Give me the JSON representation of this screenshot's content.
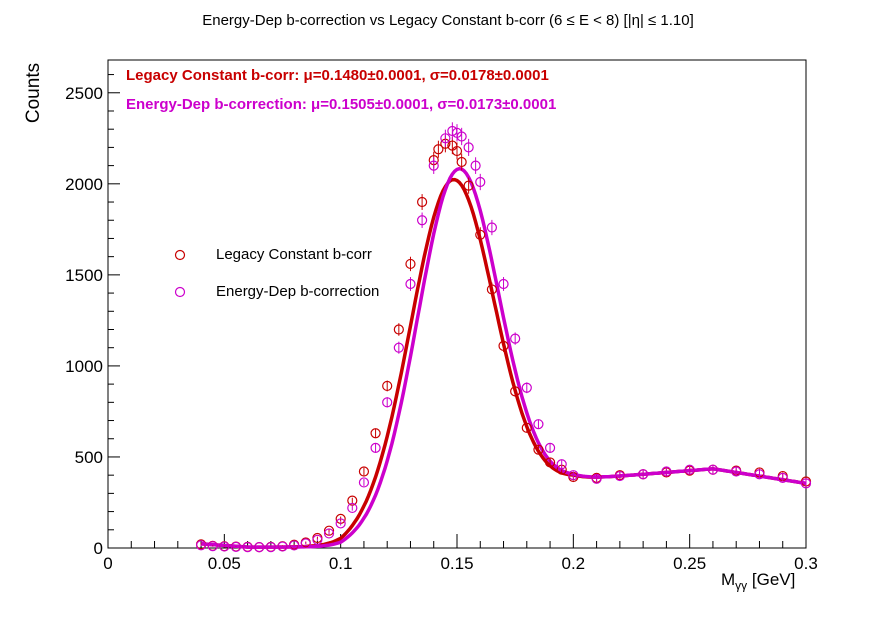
{
  "colors": {
    "legacy": "#c80000",
    "energy": "#cc00cc",
    "axis": "#000000",
    "background": "#ffffff"
  },
  "title": "Energy-Dep b-correction vs Legacy Constant b-corr   (6 ≤ E < 8)   [|η| ≤ 1.10]",
  "fit_results": {
    "legacy": "Legacy Constant b-corr: μ=0.1480±0.0001,  σ=0.0178±0.0001",
    "energy": "Energy-Dep b-correction: μ=0.1505±0.0001,  σ=0.0173±0.0001"
  },
  "legend": {
    "legacy": "Legacy Constant b-corr",
    "energy": "Energy-Dep b-correction"
  },
  "axes": {
    "x_label_main": "M",
    "x_label_sub": "γγ",
    "x_label_unit": " [GeV]",
    "y_label": "Counts"
  },
  "chart_data": {
    "type": "scatter",
    "title": "Energy-Dep b-correction vs Legacy Constant b-corr   (6 ≤ E < 8)   [|η| ≤ 1.10]",
    "xlabel": "Mγγ [GeV]",
    "ylabel": "Counts",
    "xlim": [
      0,
      0.3
    ],
    "ylim": [
      0,
      2680
    ],
    "x_ticks": [
      0,
      0.05,
      0.1,
      0.15,
      0.2,
      0.25,
      0.3
    ],
    "x_tick_labels": [
      "0",
      "0.05",
      "0.1",
      "0.15",
      "0.2",
      "0.25",
      "0.3"
    ],
    "y_ticks": [
      0,
      500,
      1000,
      1500,
      2000,
      2500
    ],
    "y_tick_labels": [
      "0",
      "500",
      "1000",
      "1500",
      "2000",
      "2500"
    ],
    "legend_position": "center-left",
    "series": [
      {
        "name": "Legacy Constant b-corr",
        "color": "#c80000",
        "marker": "open-circle",
        "fit": {
          "model": "gaussian+background",
          "amplitude": 1840,
          "mean": 0.148,
          "sigma": 0.0178
        },
        "x": [
          0.04,
          0.045,
          0.05,
          0.055,
          0.06,
          0.065,
          0.07,
          0.075,
          0.08,
          0.085,
          0.09,
          0.095,
          0.1,
          0.105,
          0.11,
          0.115,
          0.12,
          0.125,
          0.13,
          0.135,
          0.14,
          0.142,
          0.145,
          0.148,
          0.15,
          0.152,
          0.155,
          0.16,
          0.165,
          0.17,
          0.175,
          0.18,
          0.185,
          0.19,
          0.195,
          0.2,
          0.21,
          0.22,
          0.23,
          0.24,
          0.25,
          0.26,
          0.27,
          0.28,
          0.29,
          0.3
        ],
        "y": [
          20,
          12,
          10,
          8,
          6,
          5,
          6,
          10,
          18,
          30,
          55,
          95,
          160,
          260,
          420,
          630,
          890,
          1200,
          1560,
          1900,
          2130,
          2190,
          2220,
          2210,
          2180,
          2120,
          1990,
          1720,
          1420,
          1110,
          860,
          660,
          540,
          470,
          430,
          390,
          385,
          400,
          405,
          415,
          425,
          430,
          425,
          415,
          395,
          365
        ]
      },
      {
        "name": "Energy-Dep b-correction",
        "color": "#cc00cc",
        "marker": "open-circle",
        "fit": {
          "model": "gaussian+background",
          "amplitude": 1890,
          "mean": 0.1505,
          "sigma": 0.0173
        },
        "x": [
          0.04,
          0.045,
          0.05,
          0.055,
          0.06,
          0.065,
          0.07,
          0.075,
          0.08,
          0.085,
          0.09,
          0.095,
          0.1,
          0.105,
          0.11,
          0.115,
          0.12,
          0.125,
          0.13,
          0.135,
          0.14,
          0.145,
          0.148,
          0.15,
          0.152,
          0.155,
          0.158,
          0.16,
          0.165,
          0.17,
          0.175,
          0.18,
          0.185,
          0.19,
          0.195,
          0.2,
          0.21,
          0.22,
          0.23,
          0.24,
          0.25,
          0.26,
          0.27,
          0.28,
          0.29,
          0.3
        ],
        "y": [
          15,
          10,
          8,
          6,
          5,
          5,
          5,
          8,
          14,
          25,
          45,
          80,
          135,
          220,
          360,
          550,
          800,
          1100,
          1450,
          1800,
          2100,
          2250,
          2290,
          2280,
          2260,
          2200,
          2100,
          2010,
          1760,
          1450,
          1150,
          880,
          680,
          550,
          460,
          400,
          380,
          395,
          405,
          420,
          430,
          430,
          420,
          405,
          385,
          355
        ]
      }
    ]
  }
}
